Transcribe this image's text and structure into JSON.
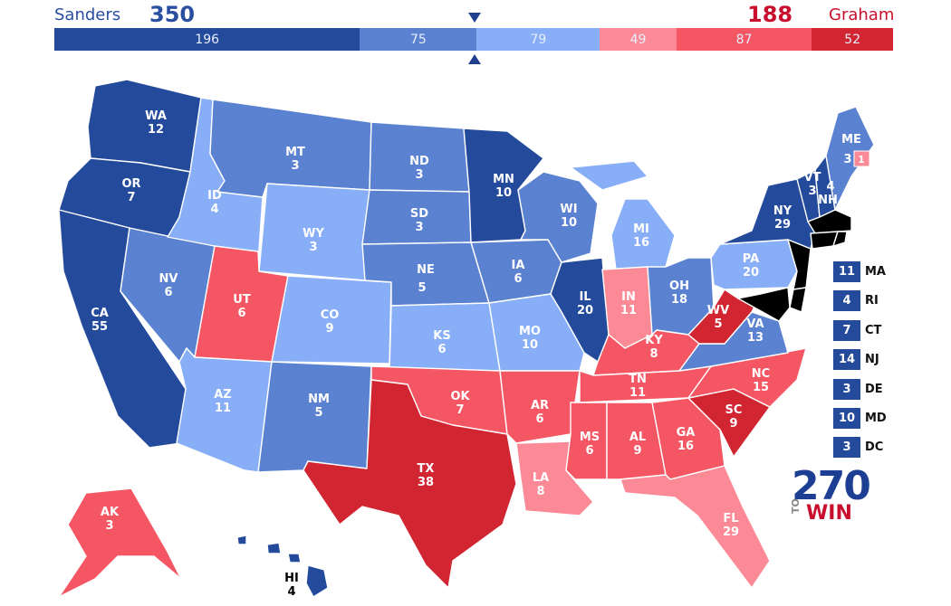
{
  "header": {
    "left_candidate": "Sanders",
    "left_total": "350",
    "right_candidate": "Graham",
    "right_total": "188",
    "left_color": "#2a4ea0",
    "right_color": "#c8102e"
  },
  "bar": [
    {
      "value": 196,
      "label": "196",
      "color": "#244a9c"
    },
    {
      "value": 75,
      "label": "75",
      "color": "#5b82d1"
    },
    {
      "value": 79,
      "label": "79",
      "color": "#87aef7"
    },
    {
      "value": 49,
      "label": "49",
      "color": "#fb8a96"
    },
    {
      "value": 87,
      "label": "87",
      "color": "#f55664"
    },
    {
      "value": 52,
      "label": "52",
      "color": "#d22532"
    }
  ],
  "colors": {
    "safe_d": "#244a9c",
    "likely_d": "#5b82d1",
    "lean_d": "#87aef7",
    "lean_r": "#fb8a96",
    "likely_r": "#f55664",
    "safe_r": "#d22532"
  },
  "states": {
    "WA": {
      "abbr": "WA",
      "ev": "12",
      "rating": "safe_d"
    },
    "OR": {
      "abbr": "OR",
      "ev": "7",
      "rating": "safe_d"
    },
    "CA": {
      "abbr": "CA",
      "ev": "55",
      "rating": "safe_d"
    },
    "NV": {
      "abbr": "NV",
      "ev": "6",
      "rating": "likely_d"
    },
    "ID": {
      "abbr": "ID",
      "ev": "4",
      "rating": "lean_d"
    },
    "MT": {
      "abbr": "MT",
      "ev": "3",
      "rating": "likely_d"
    },
    "WY": {
      "abbr": "WY",
      "ev": "3",
      "rating": "lean_d"
    },
    "UT": {
      "abbr": "UT",
      "ev": "6",
      "rating": "likely_r"
    },
    "AZ": {
      "abbr": "AZ",
      "ev": "11",
      "rating": "lean_d"
    },
    "CO": {
      "abbr": "CO",
      "ev": "9",
      "rating": "lean_d"
    },
    "NM": {
      "abbr": "NM",
      "ev": "5",
      "rating": "likely_d"
    },
    "ND": {
      "abbr": "ND",
      "ev": "3",
      "rating": "likely_d"
    },
    "SD": {
      "abbr": "SD",
      "ev": "3",
      "rating": "likely_d"
    },
    "NE": {
      "abbr": "NE",
      "ev": "5",
      "rating": "likely_d"
    },
    "KS": {
      "abbr": "KS",
      "ev": "6",
      "rating": "lean_d"
    },
    "OK": {
      "abbr": "OK",
      "ev": "7",
      "rating": "likely_r"
    },
    "TX": {
      "abbr": "TX",
      "ev": "38",
      "rating": "safe_r"
    },
    "MN": {
      "abbr": "MN",
      "ev": "10",
      "rating": "safe_d"
    },
    "IA": {
      "abbr": "IA",
      "ev": "6",
      "rating": "likely_d"
    },
    "MO": {
      "abbr": "MO",
      "ev": "10",
      "rating": "lean_d"
    },
    "AR": {
      "abbr": "AR",
      "ev": "6",
      "rating": "likely_r"
    },
    "LA": {
      "abbr": "LA",
      "ev": "8",
      "rating": "lean_r"
    },
    "WI": {
      "abbr": "WI",
      "ev": "10",
      "rating": "likely_d"
    },
    "IL": {
      "abbr": "IL",
      "ev": "20",
      "rating": "safe_d"
    },
    "MI": {
      "abbr": "MI",
      "ev": "16",
      "rating": "lean_d"
    },
    "IN": {
      "abbr": "IN",
      "ev": "11",
      "rating": "lean_r"
    },
    "OH": {
      "abbr": "OH",
      "ev": "18",
      "rating": "likely_d"
    },
    "KY": {
      "abbr": "KY",
      "ev": "8",
      "rating": "likely_r"
    },
    "TN": {
      "abbr": "TN",
      "ev": "11",
      "rating": "likely_r"
    },
    "MS": {
      "abbr": "MS",
      "ev": "6",
      "rating": "likely_r"
    },
    "AL": {
      "abbr": "AL",
      "ev": "9",
      "rating": "likely_r"
    },
    "GA": {
      "abbr": "GA",
      "ev": "16",
      "rating": "likely_r"
    },
    "FL": {
      "abbr": "FL",
      "ev": "29",
      "rating": "lean_r"
    },
    "SC": {
      "abbr": "SC",
      "ev": "9",
      "rating": "safe_r"
    },
    "NC": {
      "abbr": "NC",
      "ev": "15",
      "rating": "likely_r"
    },
    "VA": {
      "abbr": "VA",
      "ev": "13",
      "rating": "likely_d"
    },
    "WV": {
      "abbr": "WV",
      "ev": "5",
      "rating": "safe_r"
    },
    "PA": {
      "abbr": "PA",
      "ev": "20",
      "rating": "lean_d"
    },
    "NY": {
      "abbr": "NY",
      "ev": "29",
      "rating": "safe_d"
    },
    "VT": {
      "abbr": "VT",
      "ev": "3",
      "rating": "safe_d"
    },
    "NH": {
      "abbr": "NH",
      "ev": "4",
      "rating": "safe_d"
    },
    "ME": {
      "abbr": "ME",
      "ev": "3",
      "rating": "likely_d"
    },
    "ME2": {
      "abbr": "",
      "ev": "1",
      "rating": "lean_r"
    },
    "AK": {
      "abbr": "AK",
      "ev": "3",
      "rating": "likely_r"
    },
    "HI": {
      "abbr": "HI",
      "ev": "4",
      "rating": "safe_d"
    }
  },
  "small_states": [
    {
      "abbr": "MA",
      "ev": "11",
      "rating": "safe_d"
    },
    {
      "abbr": "RI",
      "ev": "4",
      "rating": "safe_d"
    },
    {
      "abbr": "CT",
      "ev": "7",
      "rating": "safe_d"
    },
    {
      "abbr": "NJ",
      "ev": "14",
      "rating": "safe_d"
    },
    {
      "abbr": "DE",
      "ev": "3",
      "rating": "safe_d"
    },
    {
      "abbr": "MD",
      "ev": "10",
      "rating": "safe_d"
    },
    {
      "abbr": "DC",
      "ev": "3",
      "rating": "safe_d"
    }
  ],
  "logo": {
    "number": "270",
    "to": "TO",
    "win": "WIN"
  }
}
